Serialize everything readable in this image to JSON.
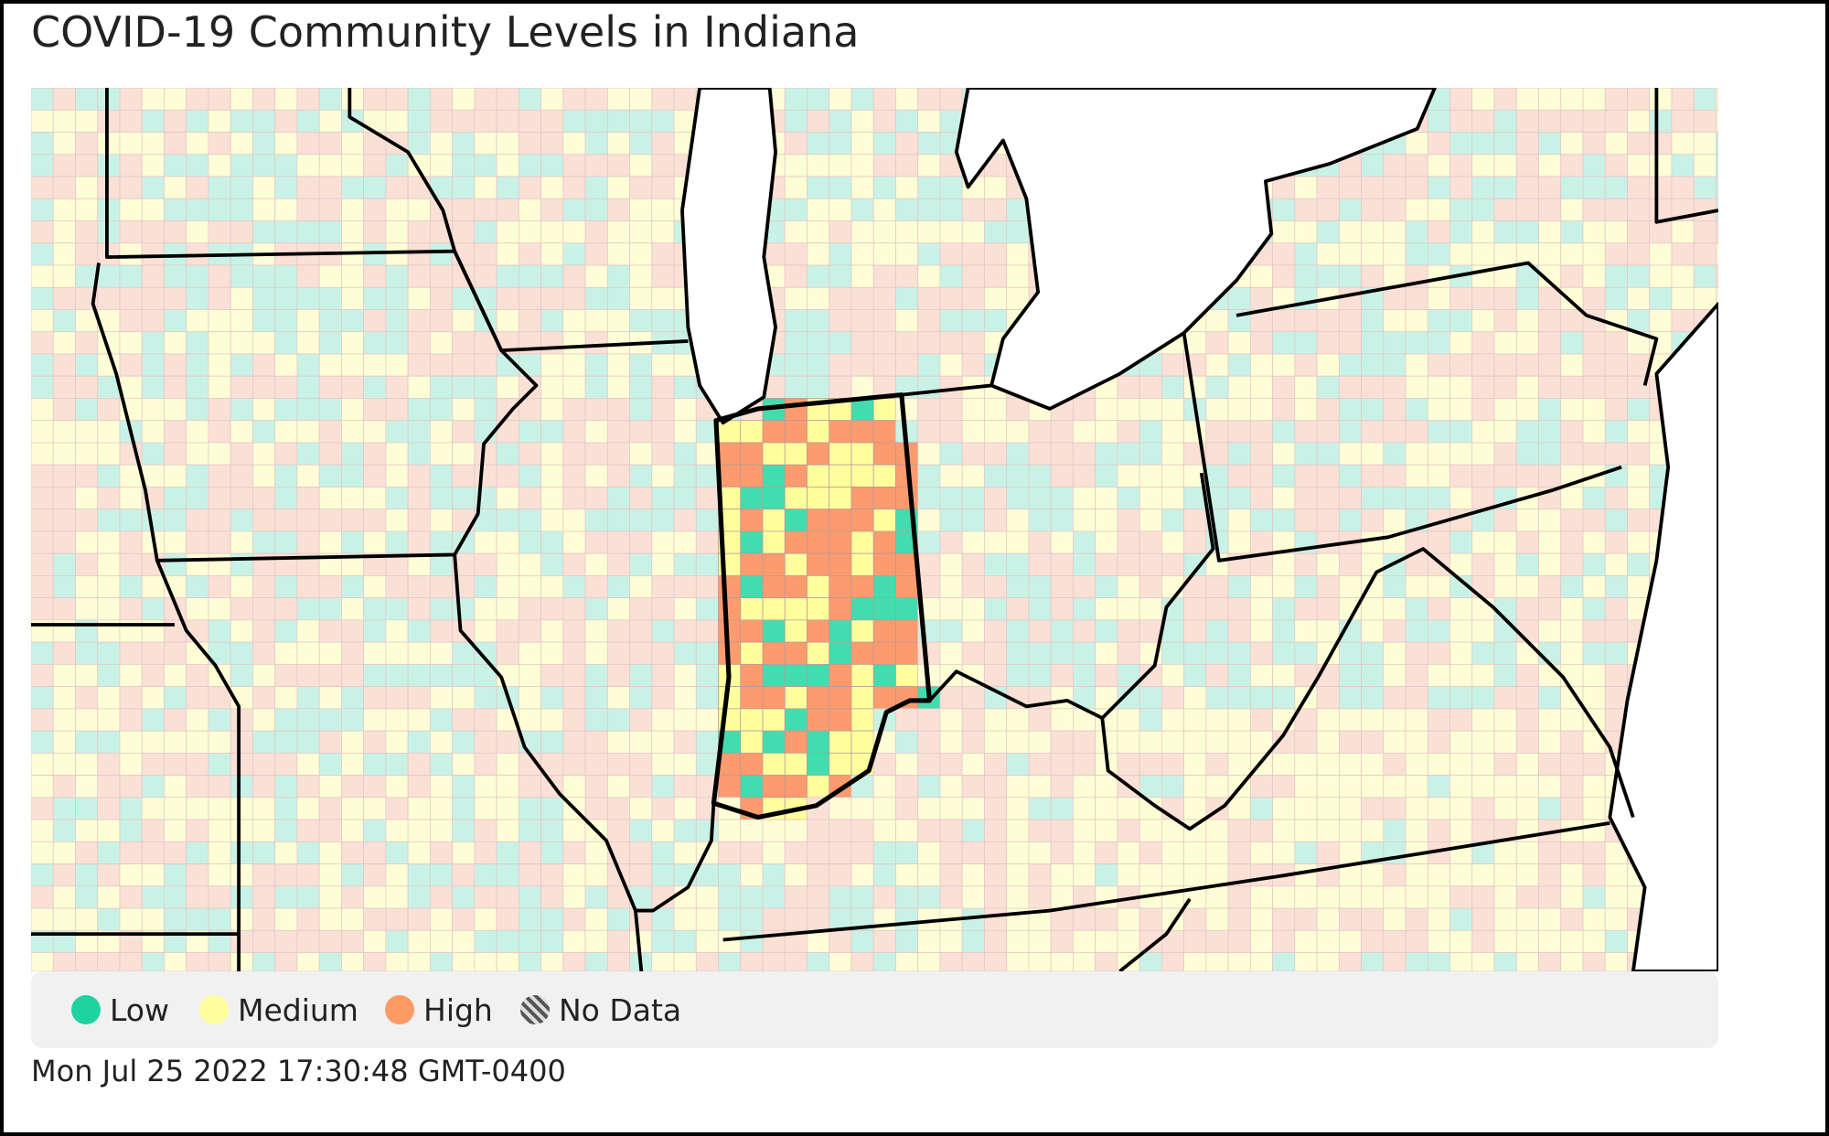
{
  "header": {
    "title": "COVID-19 Community Levels in Indiana"
  },
  "legend": {
    "items": [
      {
        "label": "Low",
        "color": "#1fd3a0"
      },
      {
        "label": "Medium",
        "color": "#ffff9e"
      },
      {
        "label": "High",
        "color": "#ff9966"
      },
      {
        "label": "No Data"
      }
    ]
  },
  "footer": {
    "timestamp": "Mon Jul 25 2022 17:30:48 GMT-0400"
  }
}
